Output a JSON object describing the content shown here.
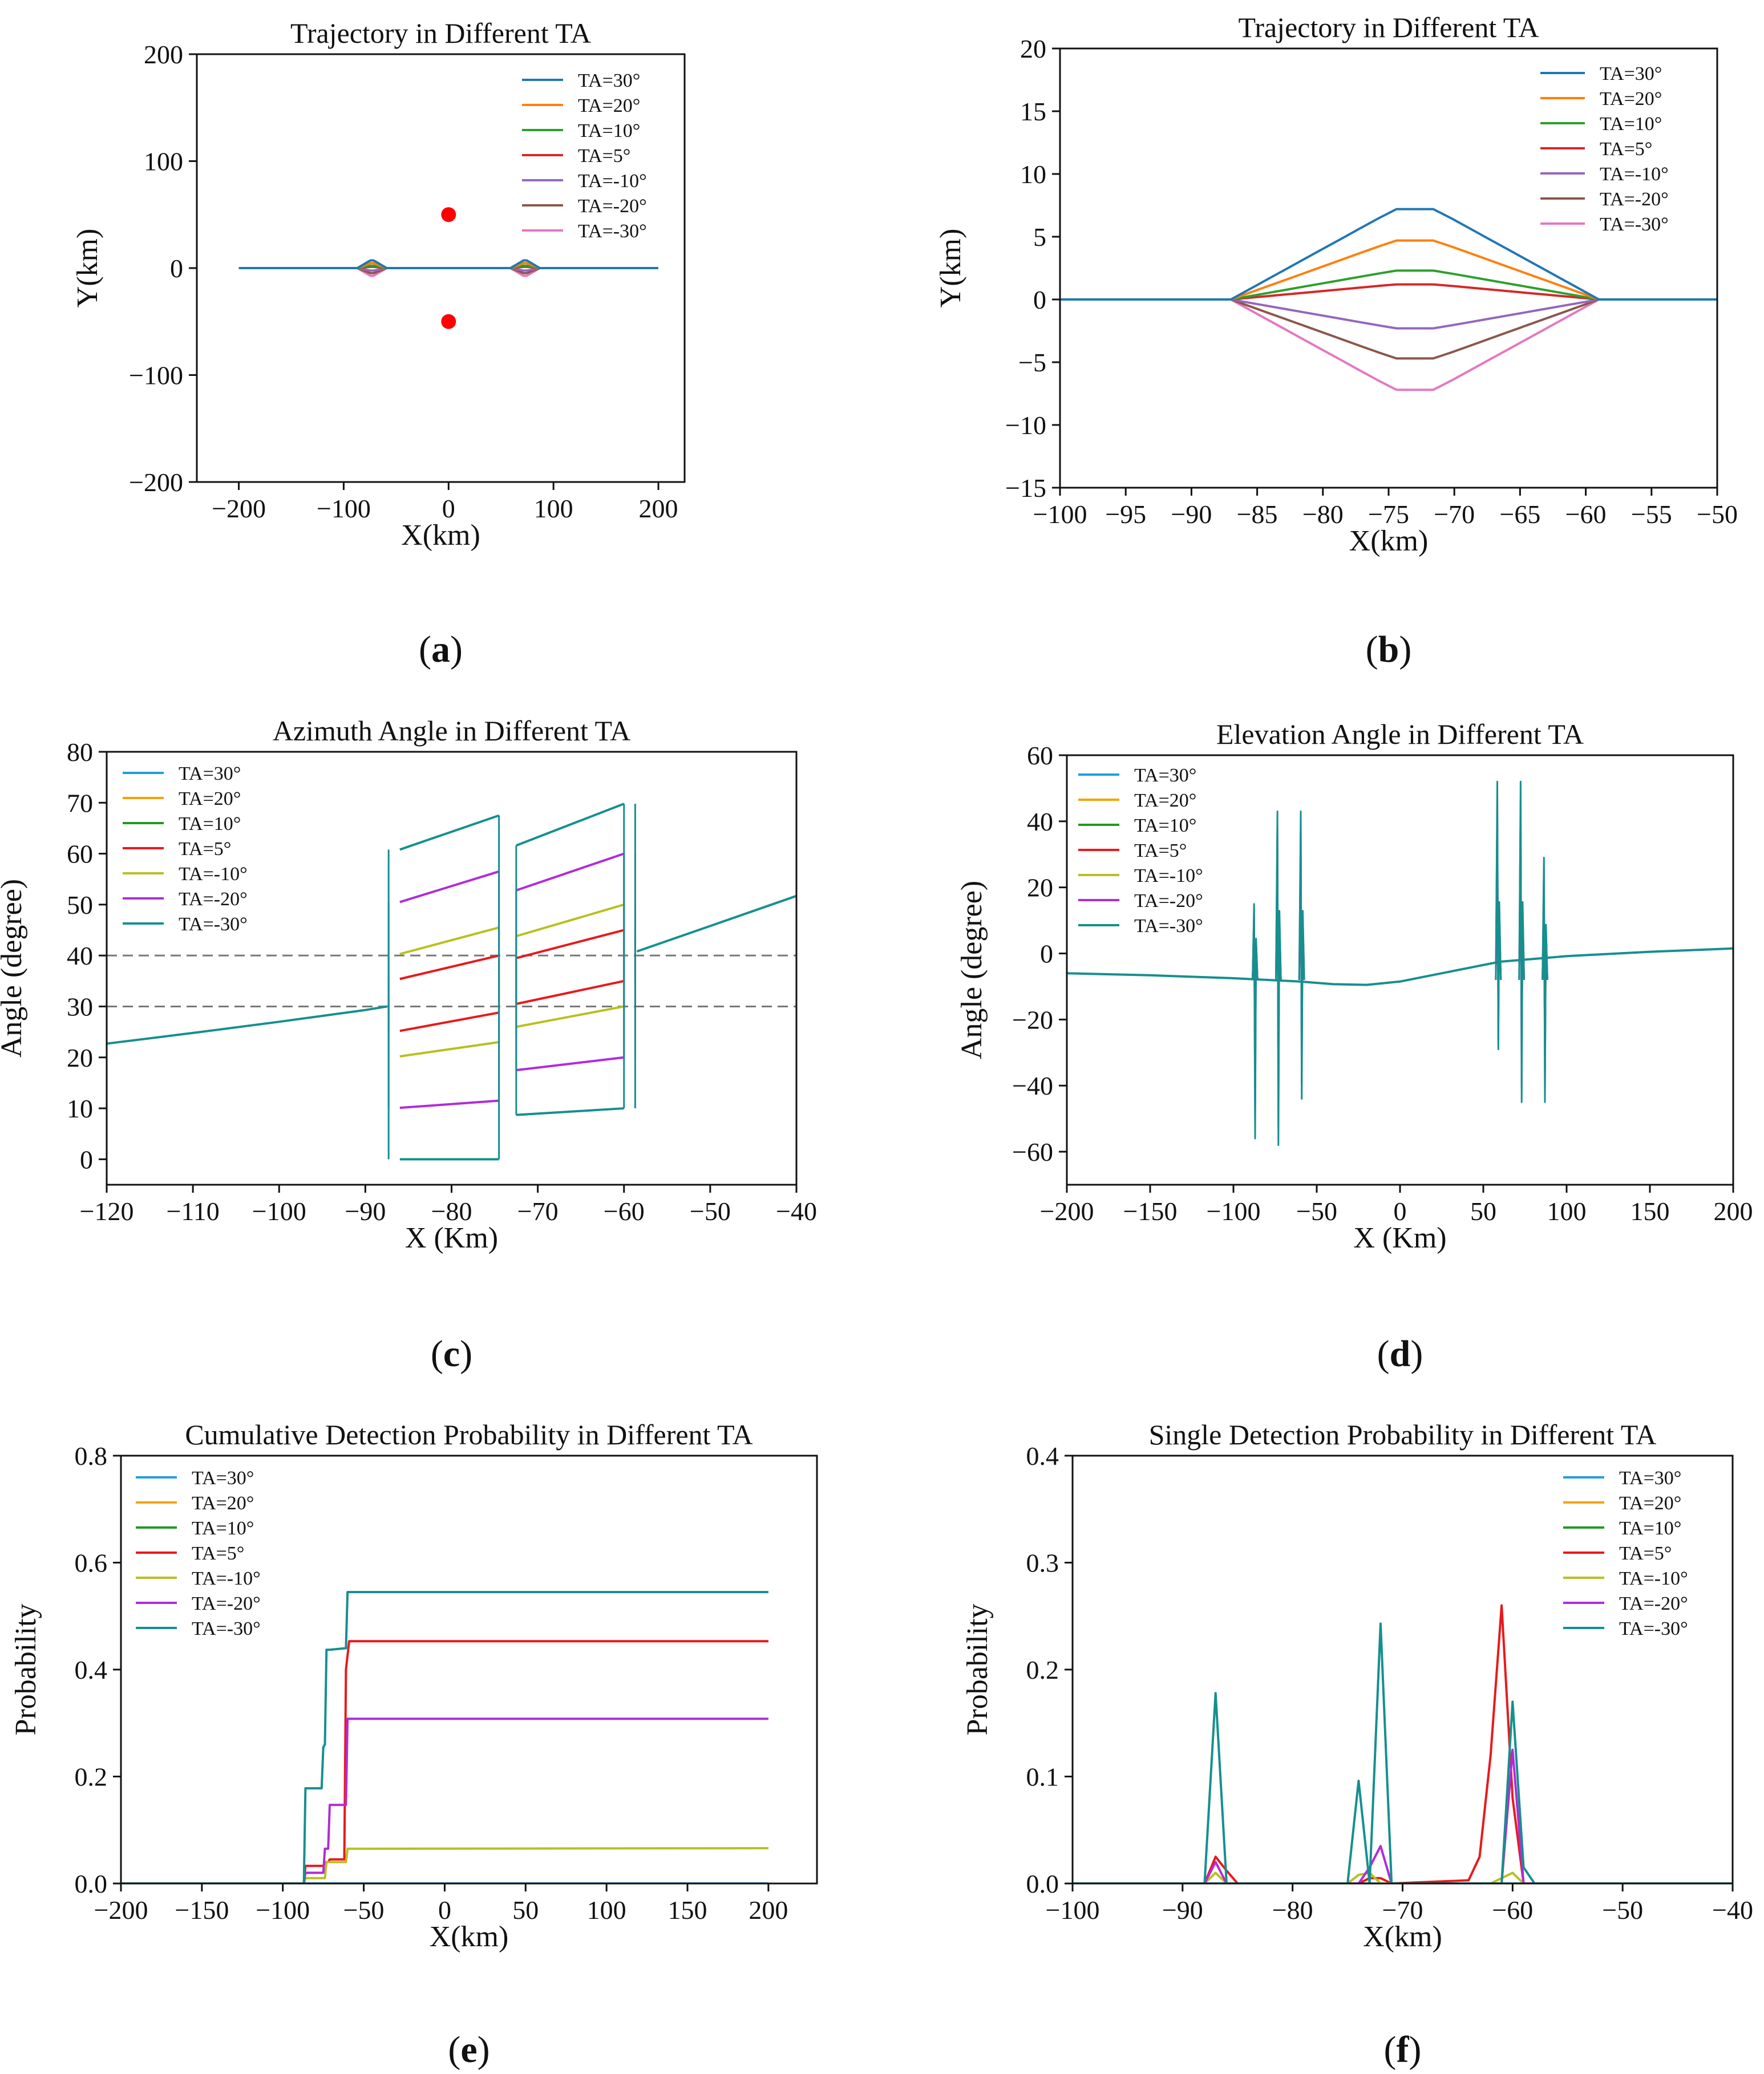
{
  "chart_data": [
    {
      "id": "a",
      "type": "line",
      "caption_letter": "a",
      "title": "Trajectory in Different TA",
      "xlabel": "X(km)",
      "ylabel": "Y(km)",
      "xlim": [
        -240,
        225
      ],
      "ylim": [
        -200,
        200
      ],
      "xticks": [
        -200,
        -100,
        0,
        100,
        200
      ],
      "yticks": [
        -200,
        -100,
        0,
        100,
        200
      ],
      "x_tick_labels": [
        "−200",
        "−100",
        "0",
        "100",
        "200"
      ],
      "y_tick_labels": [
        "−200",
        "−100",
        "0",
        "100",
        "200"
      ],
      "legend": "top-right",
      "legend_labels": [
        "TA=30°",
        "TA=20°",
        "TA=10°",
        "TA=5°",
        "TA=-10°",
        "TA=-20°",
        "TA=-30°"
      ],
      "colors": [
        "#1f77b4",
        "#ff7f0e",
        "#2ca02c",
        "#d62728",
        "#9467bd",
        "#8c564b",
        "#e377c2"
      ],
      "series_peaks": [
        7.2,
        4.7,
        2.3,
        1.2,
        -2.3,
        -4.7,
        -7.2
      ],
      "trajectory_x_range": [
        -200,
        200
      ],
      "bump_x": [
        [
          -87,
          -73,
          -59
        ],
        [
          59,
          73,
          87
        ]
      ],
      "markers": {
        "x": [
          0,
          0
        ],
        "y": [
          50,
          -50
        ],
        "color": "#ff0000"
      }
    },
    {
      "id": "b",
      "type": "line",
      "caption_letter": "b",
      "title": "Trajectory in Different TA",
      "xlabel": "X(km)",
      "ylabel": "Y(km)",
      "xlim": [
        -100,
        -50
      ],
      "ylim": [
        -15,
        20
      ],
      "xticks": [
        -100,
        -95,
        -90,
        -85,
        -80,
        -75,
        -70,
        -65,
        -60,
        -55,
        -50
      ],
      "yticks": [
        -15,
        -10,
        -5,
        0,
        5,
        10,
        15,
        20
      ],
      "x_tick_labels": [
        "−100",
        "−95",
        "−90",
        "−85",
        "−80",
        "−75",
        "−70",
        "−65",
        "−60",
        "−55",
        "−50"
      ],
      "y_tick_labels": [
        "−15",
        "−10",
        "−5",
        "0",
        "5",
        "10",
        "15",
        "20"
      ],
      "legend": "top-right",
      "legend_labels": [
        "TA=30°",
        "TA=20°",
        "TA=10°",
        "TA=5°",
        "TA=-10°",
        "TA=-20°",
        "TA=-30°"
      ],
      "colors": [
        "#1f77b4",
        "#ff7f0e",
        "#2ca02c",
        "#d62728",
        "#9467bd",
        "#8c564b",
        "#e377c2"
      ],
      "series_peaks": [
        7.2,
        4.7,
        2.3,
        1.2,
        -2.3,
        -4.7,
        -7.2
      ],
      "bump_x": [
        [
          -87,
          -73,
          -59
        ]
      ]
    },
    {
      "id": "c",
      "type": "line",
      "caption_letter": "c",
      "title": "Azimuth Angle in Different TA",
      "xlabel": "X (Km)",
      "ylabel": "Angle (degree)",
      "xlim": [
        -120,
        -40
      ],
      "ylim": [
        -5,
        80
      ],
      "xticks": [
        -120,
        -110,
        -100,
        -90,
        -80,
        -70,
        -60,
        -50,
        -40
      ],
      "yticks": [
        0,
        10,
        20,
        30,
        40,
        50,
        60,
        70,
        80
      ],
      "x_tick_labels": [
        "−120",
        "−110",
        "−100",
        "−90",
        "−80",
        "−70",
        "−60",
        "−50",
        "−40"
      ],
      "y_tick_labels": [
        "0",
        "10",
        "20",
        "30",
        "40",
        "50",
        "60",
        "70",
        "80"
      ],
      "reference_lines": [
        30,
        40
      ],
      "legend": "top-left",
      "legend_labels": [
        "TA=30°",
        "TA=20°",
        "TA=10°",
        "TA=5°",
        "TA=-10°",
        "TA=-20°",
        "TA=-30°"
      ],
      "colors": [
        "#1f9ee0",
        "#f5a300",
        "#209a20",
        "#e8191c",
        "#b8c020",
        "#b02cd8",
        "#168f8f"
      ],
      "base_curve": {
        "x": [
          -120,
          -110,
          -100,
          -90,
          -87.5
        ],
        "y": [
          22.7,
          24.8,
          27,
          29.3,
          30
        ]
      },
      "tail_curve": {
        "x": [
          -58.5,
          -50,
          -40
        ],
        "y": [
          40.8,
          45.8,
          51.7
        ]
      },
      "segments": {
        "TA=5°": [
          [
            -86,
            25.2,
            -74.5,
            28.8
          ],
          [
            -86,
            35.4,
            -74.5,
            40
          ],
          [
            -72.5,
            30.5,
            -60,
            35
          ],
          [
            -72.5,
            39.5,
            -60,
            45
          ]
        ],
        "TA=-10°": [
          [
            -86,
            20.2,
            -74.5,
            23
          ],
          [
            -86,
            40.3,
            -74.5,
            45.5
          ],
          [
            -72.5,
            26,
            -60,
            30
          ],
          [
            -72.5,
            43.8,
            -60,
            50
          ]
        ],
        "TA=-20°": [
          [
            -86,
            10.1,
            -74.5,
            11.5
          ],
          [
            -86,
            50.5,
            -74.5,
            56.5
          ],
          [
            -72.5,
            17.5,
            -60,
            20
          ],
          [
            -72.5,
            52.8,
            -60,
            60
          ]
        ],
        "TA=-30°": [
          [
            -86,
            0,
            -74.5,
            0
          ],
          [
            -86,
            60.8,
            -74.5,
            67.5
          ],
          [
            -72.5,
            8.7,
            -60,
            10
          ],
          [
            -72.5,
            61.6,
            -60,
            69.8
          ]
        ]
      }
    },
    {
      "id": "d",
      "type": "line",
      "caption_letter": "d",
      "title": "Elevation Angle in Different TA",
      "xlabel": "X (Km)",
      "ylabel": "Angle (degree)",
      "xlim": [
        -200,
        200
      ],
      "ylim": [
        -70,
        60
      ],
      "xticks": [
        -200,
        -150,
        -100,
        -50,
        0,
        50,
        100,
        150,
        200
      ],
      "yticks": [
        -60,
        -40,
        -20,
        0,
        20,
        40,
        60
      ],
      "x_tick_labels": [
        "−200",
        "−150",
        "−100",
        "−50",
        "0",
        "50",
        "100",
        "150",
        "200"
      ],
      "y_tick_labels": [
        "−60",
        "−40",
        "−20",
        "0",
        "20",
        "40",
        "60"
      ],
      "legend": "top-left",
      "legend_labels": [
        "TA=30°",
        "TA=20°",
        "TA=10°",
        "TA=5°",
        "TA=-10°",
        "TA=-20°",
        "TA=-30°"
      ],
      "colors": [
        "#1f9ee0",
        "#f5a300",
        "#209a20",
        "#e8191c",
        "#b8c020",
        "#b02cd8",
        "#168f8f"
      ],
      "base_curve": {
        "x": [
          -200,
          -150,
          -100,
          -60,
          -40,
          -20,
          0,
          20,
          40,
          60,
          100,
          150,
          200
        ],
        "y": [
          -6,
          -6.6,
          -7.5,
          -8.5,
          -9.3,
          -9.5,
          -8.5,
          -6.5,
          -4.5,
          -2.5,
          -0.8,
          0.5,
          1.5
        ]
      },
      "spikes": [
        [
          -87,
          15,
          -56
        ],
        [
          -73,
          43,
          -58
        ],
        [
          -59,
          43,
          -44
        ],
        [
          59,
          52,
          -29
        ],
        [
          73,
          52,
          -45
        ],
        [
          87,
          29,
          -45
        ]
      ]
    },
    {
      "id": "e",
      "type": "line",
      "caption_letter": "e",
      "title": "Cumulative Detection Probability in Different TA",
      "xlabel": "X(km)",
      "ylabel": "Probability",
      "xlim": [
        -200,
        230
      ],
      "ylim": [
        0,
        0.8
      ],
      "xticks": [
        -200,
        -150,
        -100,
        -50,
        0,
        50,
        100,
        150,
        200
      ],
      "yticks": [
        0,
        0.2,
        0.4,
        0.6,
        0.8
      ],
      "x_tick_labels": [
        "−200",
        "−150",
        "−100",
        "−50",
        "0",
        "50",
        "100",
        "150",
        "200"
      ],
      "y_tick_labels": [
        "0.0",
        "0.2",
        "0.4",
        "0.6",
        "0.8"
      ],
      "legend": "top-left",
      "legend_labels": [
        "TA=30°",
        "TA=20°",
        "TA=10°",
        "TA=5°",
        "TA=-10°",
        "TA=-20°",
        "TA=-30°"
      ],
      "colors": [
        "#1f9ee0",
        "#f5a300",
        "#209a20",
        "#e8191c",
        "#b8c020",
        "#b02cd8",
        "#168f8f"
      ],
      "series": {
        "TA=5°": {
          "x": [
            -200,
            -87,
            -86,
            -75,
            -74,
            -72,
            -71,
            -62,
            -61,
            -59,
            200
          ],
          "y": [
            0,
            0,
            0.033,
            0.033,
            0.04,
            0.04,
            0.045,
            0.045,
            0.4,
            0.453,
            0.453
          ]
        },
        "TA=-10°": {
          "x": [
            -200,
            -87,
            -86,
            -74,
            -73,
            -61,
            -60,
            200
          ],
          "y": [
            0,
            0,
            0.01,
            0.01,
            0.04,
            0.04,
            0.065,
            0.066
          ]
        },
        "TA=-20°": {
          "x": [
            -200,
            -87,
            -86,
            -75,
            -74,
            -72,
            -71,
            -61,
            -60,
            200
          ],
          "y": [
            0,
            0,
            0.02,
            0.02,
            0.065,
            0.065,
            0.147,
            0.147,
            0.308,
            0.308
          ]
        },
        "TA=-30°": {
          "x": [
            -200,
            -87,
            -86,
            -76,
            -75,
            -74,
            -73,
            -72,
            -71,
            -61,
            -60,
            200
          ],
          "y": [
            0,
            0,
            0.178,
            0.178,
            0.255,
            0.26,
            0.437,
            0.437,
            0.437,
            0.44,
            0.545,
            0.545
          ]
        }
      }
    },
    {
      "id": "f",
      "type": "line",
      "caption_letter": "f",
      "title": "Single Detection Probability in Different TA",
      "xlabel": "X(km)",
      "ylabel": "Probability",
      "xlim": [
        -100,
        -40
      ],
      "ylim": [
        0,
        0.4
      ],
      "xticks": [
        -100,
        -90,
        -80,
        -70,
        -60,
        -50,
        -40
      ],
      "yticks": [
        0,
        0.1,
        0.2,
        0.3,
        0.4
      ],
      "x_tick_labels": [
        "−100",
        "−90",
        "−80",
        "−70",
        "−60",
        "−50",
        "−40"
      ],
      "y_tick_labels": [
        "0.0",
        "0.1",
        "0.2",
        "0.3",
        "0.4"
      ],
      "legend": "top-right",
      "legend_labels": [
        "TA=30°",
        "TA=20°",
        "TA=10°",
        "TA=5°",
        "TA=-10°",
        "TA=-20°",
        "TA=-30°"
      ],
      "colors": [
        "#1f9ee0",
        "#f5a300",
        "#209a20",
        "#e8191c",
        "#b8c020",
        "#b02cd8",
        "#168f8f"
      ],
      "series": {
        "TA=5°": {
          "x": [
            -100,
            -88,
            -87,
            -86,
            -85,
            -74,
            -73,
            -72,
            -71,
            -64,
            -63,
            -62,
            -61,
            -60,
            -59,
            -40
          ],
          "y": [
            0,
            0,
            0.025,
            0.012,
            0,
            0,
            0.005,
            0.005,
            0,
            0.003,
            0.025,
            0.12,
            0.26,
            0.08,
            0,
            0
          ]
        },
        "TA=-10°": {
          "x": [
            -100,
            -88,
            -87,
            -86,
            -75,
            -74,
            -73,
            -72,
            -62,
            -61,
            -60,
            -59,
            -40
          ],
          "y": [
            0,
            0,
            0.01,
            0,
            0,
            0.008,
            0.01,
            0,
            0,
            0.005,
            0.01,
            0,
            0
          ]
        },
        "TA=-20°": {
          "x": [
            -100,
            -88,
            -87,
            -86,
            -74,
            -73,
            -72,
            -71,
            -61,
            -60,
            -59,
            -40
          ],
          "y": [
            0,
            0,
            0.02,
            0,
            0,
            0.015,
            0.035,
            0,
            0,
            0.125,
            0,
            0
          ]
        },
        "TA=-30°": {
          "x": [
            -100,
            -88,
            -87,
            -86,
            -75,
            -74,
            -73,
            -72,
            -71,
            -61,
            -60,
            -59,
            -58,
            -40
          ],
          "y": [
            0,
            0,
            0.178,
            0,
            0,
            0.096,
            0,
            0.243,
            0,
            0,
            0.17,
            0.015,
            0,
            0
          ]
        }
      }
    }
  ]
}
